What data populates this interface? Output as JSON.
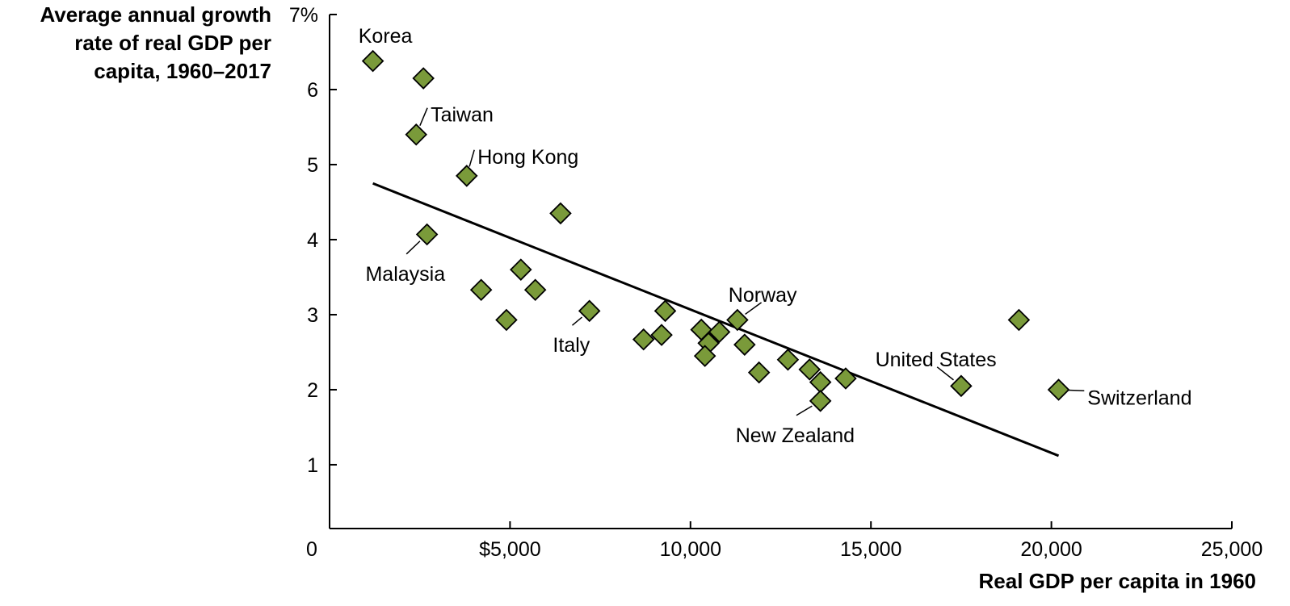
{
  "chart_data": {
    "type": "scatter",
    "ylabel_lines": [
      "Average annual growth",
      "rate of real GDP per",
      "capita, 1960–2017"
    ],
    "xlabel": "Real GDP per capita in 1960",
    "xlim": [
      0,
      25000
    ],
    "ylim": [
      0.15,
      7
    ],
    "x_ticks": [
      {
        "value": 0,
        "label": "0"
      },
      {
        "value": 5000,
        "label": "$5,000"
      },
      {
        "value": 10000,
        "label": "10,000"
      },
      {
        "value": 15000,
        "label": "15,000"
      },
      {
        "value": 20000,
        "label": "20,000"
      },
      {
        "value": 25000,
        "label": "25,000"
      }
    ],
    "y_ticks": [
      {
        "value": 1,
        "label": "1"
      },
      {
        "value": 2,
        "label": "2"
      },
      {
        "value": 3,
        "label": "3"
      },
      {
        "value": 4,
        "label": "4"
      },
      {
        "value": 5,
        "label": "5"
      },
      {
        "value": 6,
        "label": "6"
      },
      {
        "value": 7,
        "label": "7%"
      }
    ],
    "points": [
      {
        "x": 1200,
        "y": 6.38
      },
      {
        "x": 2600,
        "y": 6.15
      },
      {
        "x": 2400,
        "y": 5.4
      },
      {
        "x": 3800,
        "y": 4.85
      },
      {
        "x": 6400,
        "y": 4.35
      },
      {
        "x": 2700,
        "y": 4.07
      },
      {
        "x": 5300,
        "y": 3.6
      },
      {
        "x": 4200,
        "y": 3.33
      },
      {
        "x": 5700,
        "y": 3.33
      },
      {
        "x": 4900,
        "y": 2.93
      },
      {
        "x": 7200,
        "y": 3.05
      },
      {
        "x": 8700,
        "y": 2.67
      },
      {
        "x": 9200,
        "y": 2.73
      },
      {
        "x": 9300,
        "y": 3.05
      },
      {
        "x": 10300,
        "y": 2.8
      },
      {
        "x": 10500,
        "y": 2.62
      },
      {
        "x": 10800,
        "y": 2.77
      },
      {
        "x": 10400,
        "y": 2.45
      },
      {
        "x": 11300,
        "y": 2.93
      },
      {
        "x": 11500,
        "y": 2.6
      },
      {
        "x": 11900,
        "y": 2.23
      },
      {
        "x": 12700,
        "y": 2.4
      },
      {
        "x": 13300,
        "y": 2.27
      },
      {
        "x": 13600,
        "y": 2.1
      },
      {
        "x": 13600,
        "y": 1.85
      },
      {
        "x": 14300,
        "y": 2.15
      },
      {
        "x": 17500,
        "y": 2.05
      },
      {
        "x": 19100,
        "y": 2.93
      },
      {
        "x": 20200,
        "y": 2.0
      }
    ],
    "trend_line": [
      {
        "x": 1200,
        "y": 4.75
      },
      {
        "x": 20200,
        "y": 1.12
      }
    ],
    "annotations": [
      {
        "text": "Korea",
        "point_index": 0,
        "x": 800,
        "y": 6.72,
        "anchor": "start",
        "leader": false
      },
      {
        "text": "Taiwan",
        "point_index": 2,
        "x": 2800,
        "y": 5.67,
        "anchor": "start",
        "leader": true
      },
      {
        "text": "Hong Kong",
        "point_index": 3,
        "x": 4100,
        "y": 5.11,
        "anchor": "start",
        "leader": true
      },
      {
        "text": "Malaysia",
        "point_index": 5,
        "x": 2100,
        "y": 3.55,
        "anchor": "middle",
        "leader": true
      },
      {
        "text": "Italy",
        "point_index": 10,
        "x": 6700,
        "y": 2.6,
        "anchor": "middle",
        "leader": true
      },
      {
        "text": "Norway",
        "point_index": 18,
        "x": 12000,
        "y": 3.27,
        "anchor": "middle",
        "leader": true
      },
      {
        "text": "New Zealand",
        "point_index": 24,
        "x": 12900,
        "y": 1.4,
        "anchor": "middle",
        "leader": true
      },
      {
        "text": "United States",
        "point_index": 26,
        "x": 16800,
        "y": 2.41,
        "anchor": "middle",
        "leader": true
      },
      {
        "text": "Switzerland",
        "point_index": 28,
        "x": 21000,
        "y": 1.9,
        "anchor": "start",
        "leader": true
      }
    ],
    "marker_color": "#7a9a3a",
    "marker_stroke": "#000000",
    "grid": false,
    "legend": "none"
  }
}
